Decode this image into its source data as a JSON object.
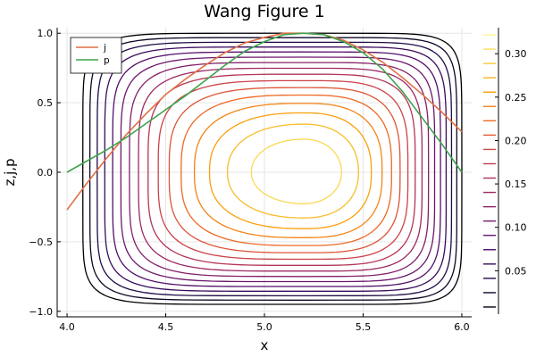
{
  "chart_data": {
    "type": "contour+line",
    "title": "Wang Figure 1",
    "xlabel": "x",
    "ylabel": "z,j,p",
    "xlim": [
      3.95,
      6.05
    ],
    "ylim": [
      -1.04,
      1.04
    ],
    "xticks": [
      4.0,
      4.5,
      5.0,
      5.5,
      6.0
    ],
    "xtick_labels": [
      "4.0",
      "4.5",
      "5.0",
      "5.5",
      "6.0"
    ],
    "yticks": [
      -1.0,
      -0.5,
      0.0,
      0.5,
      1.0
    ],
    "ytick_labels": [
      "−1.0",
      "−0.5",
      "0.0",
      "0.5",
      "1.0"
    ],
    "grid": true,
    "legend_position": "top-left",
    "series": [
      {
        "name": "j",
        "color": "#e26f46",
        "x": [
          4.0,
          4.1,
          4.2,
          4.3,
          4.4,
          4.5,
          4.6,
          4.7,
          4.8,
          4.9,
          5.0,
          5.1,
          5.2,
          5.3,
          5.4,
          5.5,
          5.6,
          5.7,
          5.8,
          5.9,
          6.0
        ],
        "y": [
          -0.27,
          -0.08,
          0.1,
          0.27,
          0.42,
          0.56,
          0.67,
          0.77,
          0.86,
          0.93,
          0.97,
          1.0,
          1.0,
          0.99,
          0.95,
          0.88,
          0.79,
          0.68,
          0.56,
          0.43,
          0.29
        ]
      },
      {
        "name": "p",
        "color": "#3da44d",
        "x": [
          4.0,
          4.1,
          4.2,
          4.3,
          4.4,
          4.5,
          4.6,
          4.7,
          4.8,
          4.9,
          5.0,
          5.1,
          5.2,
          5.3,
          5.4,
          5.5,
          5.6,
          5.7,
          5.8,
          5.9,
          6.0
        ],
        "y": [
          0.0,
          0.08,
          0.16,
          0.25,
          0.35,
          0.45,
          0.55,
          0.66,
          0.77,
          0.87,
          0.94,
          0.99,
          1.0,
          0.99,
          0.94,
          0.86,
          0.74,
          0.58,
          0.39,
          0.2,
          0.0
        ]
      }
    ],
    "contour": {
      "center": [
        5.2,
        0.0
      ],
      "x_extent": [
        4.08,
        6.0
      ],
      "y_extent": [
        -0.95,
        1.0
      ],
      "levels": [
        0.0,
        0.02,
        0.04,
        0.06,
        0.08,
        0.1,
        0.12,
        0.14,
        0.16,
        0.18,
        0.2,
        0.22,
        0.24,
        0.26,
        0.28,
        0.3
      ],
      "colormap": [
        "#000004",
        "#1b0c41",
        "#4a0c6b",
        "#781c6d",
        "#a52c60",
        "#cf4446",
        "#ed6925",
        "#fb9b06",
        "#f7d13d",
        "#fcffa4"
      ],
      "colorbar_range": [
        0.0,
        0.33
      ],
      "colorbar_ticks": [
        0.05,
        0.1,
        0.15,
        0.2,
        0.25,
        0.3
      ],
      "colorbar_tick_labels": [
        "0.05",
        "0.10",
        "0.15",
        "0.20",
        "0.25",
        "0.30"
      ]
    }
  }
}
